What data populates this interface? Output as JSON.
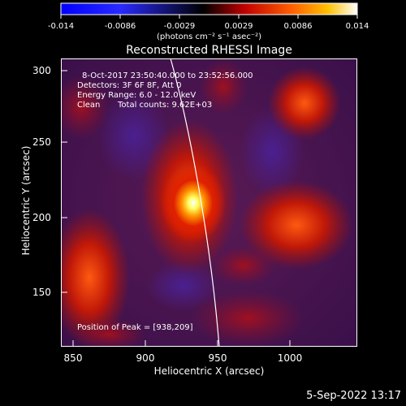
{
  "colorbar": {
    "ticks": [
      "-0.014",
      "-0.0086",
      "-0.0029",
      "0.0029",
      "0.0086",
      "0.014"
    ],
    "units": "(photons cm⁻² s⁻¹ asec⁻²)"
  },
  "title": "Reconstructed RHESSI Image",
  "info": {
    "time": "8-Oct-2017 23:50:40.000 to 23:52:56.000",
    "detectors": "Detectors: 3F 6F 8F, Att 0",
    "energy": "Energy Range: 6.0 - 12.0 keV",
    "clean": "Clean",
    "counts": "Total counts: 9.62E+03"
  },
  "peak": "Position of Peak = [938,209]",
  "axes": {
    "x_label": "Heliocentric X (arcsec)",
    "y_label": "Heliocentric Y (arcsec)",
    "x_ticks": [
      "850",
      "900",
      "950",
      "1000"
    ],
    "y_ticks": [
      "300",
      "250",
      "200",
      "150"
    ]
  },
  "date": "5-Sep-2022 13:17"
}
